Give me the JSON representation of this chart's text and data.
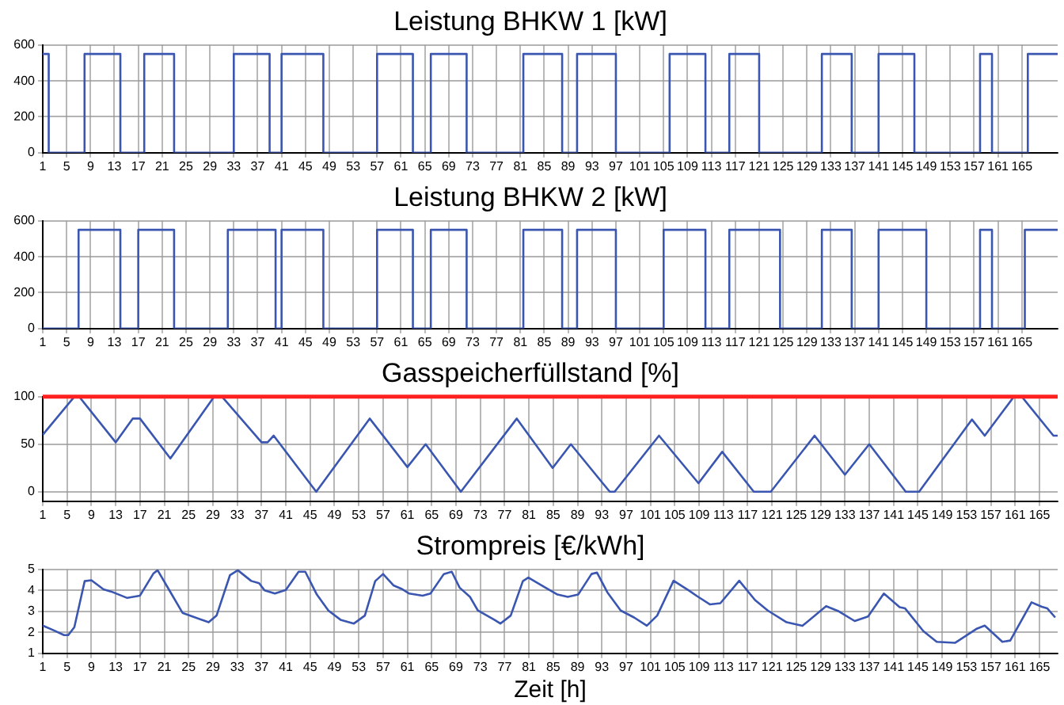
{
  "chart_data": [
    {
      "type": "step",
      "title": "Leistung BHKW 1 [kW]",
      "xlim": [
        1,
        171
      ],
      "xticks": [
        1,
        5,
        9,
        13,
        17,
        21,
        25,
        29,
        33,
        37,
        41,
        45,
        49,
        53,
        57,
        61,
        65,
        69,
        73,
        77,
        81,
        85,
        89,
        93,
        97,
        101,
        105,
        109,
        113,
        117,
        121,
        125,
        129,
        133,
        137,
        141,
        145,
        149,
        153,
        157,
        161,
        165
      ],
      "ylim": [
        0,
        600
      ],
      "yticks": [
        0,
        200,
        400,
        600
      ],
      "grid": true,
      "series": [
        {
          "color": "#3a56b0",
          "x": [
            1,
            2,
            8,
            14,
            18,
            23,
            33,
            39,
            41,
            48,
            57,
            63,
            66,
            72,
            81.5,
            88,
            90.5,
            97,
            106,
            112,
            116,
            121,
            131.5,
            136.5,
            141,
            147,
            158,
            160,
            166,
            171
          ],
          "values": [
            550,
            0,
            550,
            0,
            550,
            0,
            550,
            0,
            550,
            0,
            550,
            0,
            550,
            0,
            550,
            0,
            550,
            0,
            550,
            0,
            550,
            0,
            550,
            0,
            550,
            0,
            550,
            0,
            550,
            550
          ]
        }
      ]
    },
    {
      "type": "step",
      "title": "Leistung BHKW 2 [kW]",
      "xlim": [
        1,
        171
      ],
      "xticks": [
        1,
        5,
        9,
        13,
        17,
        21,
        25,
        29,
        33,
        37,
        41,
        45,
        49,
        53,
        57,
        61,
        65,
        69,
        73,
        77,
        81,
        85,
        89,
        93,
        97,
        101,
        105,
        109,
        113,
        117,
        121,
        125,
        129,
        133,
        137,
        141,
        145,
        149,
        153,
        157,
        161,
        165
      ],
      "ylim": [
        0,
        600
      ],
      "yticks": [
        0,
        200,
        400,
        600
      ],
      "grid": true,
      "series": [
        {
          "color": "#3a56b0",
          "x": [
            1,
            7,
            14,
            17,
            23,
            32,
            40,
            41,
            48,
            57,
            63,
            66,
            72,
            81.5,
            88,
            90.5,
            97,
            105,
            112,
            116,
            124.5,
            131.5,
            136.5,
            141,
            149,
            158,
            160,
            165.5,
            171
          ],
          "values": [
            0,
            550,
            0,
            550,
            0,
            550,
            0,
            550,
            0,
            550,
            0,
            550,
            0,
            550,
            0,
            550,
            0,
            550,
            0,
            550,
            0,
            550,
            0,
            550,
            0,
            550,
            0,
            550,
            550
          ]
        }
      ]
    },
    {
      "type": "line",
      "title": "Gasspeicherfüllstand [%]",
      "xlim": [
        1,
        168
      ],
      "xticks": [
        1,
        5,
        9,
        13,
        17,
        21,
        25,
        29,
        33,
        37,
        41,
        45,
        49,
        53,
        57,
        61,
        65,
        69,
        73,
        77,
        81,
        85,
        89,
        93,
        97,
        101,
        105,
        109,
        113,
        117,
        121,
        125,
        129,
        133,
        137,
        141,
        145,
        149,
        153,
        157,
        161,
        165
      ],
      "ylim": [
        -10,
        100
      ],
      "yticks": [
        0,
        50,
        100
      ],
      "grid": true,
      "ref_lines": [
        {
          "axis": "y",
          "value": 100,
          "color": "#ff2020"
        }
      ],
      "series": [
        {
          "color": "#3a56b0",
          "x": [
            1,
            6.2,
            7,
            13,
            15.8,
            17,
            22,
            29.2,
            30.5,
            37,
            38,
            39,
            46,
            54.8,
            61,
            64,
            69.8,
            79,
            84.9,
            87.9,
            94.3,
            95.1,
            102.4,
            108.9,
            112.8,
            118,
            120.8,
            128,
            133,
            137,
            143,
            145.2,
            153.9,
            156,
            160.8,
            162.1,
            167.3,
            168
          ],
          "values": [
            60,
            100,
            100,
            52,
            77,
            77,
            35,
            100,
            100,
            52,
            52,
            59,
            0,
            77,
            26,
            50,
            0,
            77,
            25,
            50,
            0,
            0,
            59,
            9,
            42,
            0,
            0,
            59,
            18,
            50,
            0,
            0,
            76,
            59,
            100,
            100,
            59,
            59
          ]
        }
      ]
    },
    {
      "type": "line",
      "title": "Strompreis [€/kWh]",
      "xlabel": "Zeit [h]",
      "xlim": [
        1,
        168
      ],
      "xticks": [
        1,
        5,
        9,
        13,
        17,
        21,
        25,
        29,
        33,
        37,
        41,
        45,
        49,
        53,
        57,
        61,
        65,
        69,
        73,
        77,
        81,
        85,
        89,
        93,
        97,
        101,
        105,
        109,
        113,
        117,
        121,
        125,
        129,
        133,
        137,
        141,
        145,
        149,
        153,
        157,
        161,
        165
      ],
      "ylim": [
        1,
        5
      ],
      "yticks": [
        1,
        2,
        3,
        4,
        5
      ],
      "grid": true,
      "series": [
        {
          "color": "#3a56b0",
          "x": [
            1,
            2.7,
            4.5,
            5.2,
            6.2,
            7.9,
            9,
            11,
            12.3,
            14.9,
            17,
            19.2,
            19.9,
            21.8,
            24,
            28.3,
            29.6,
            31.8,
            33.1,
            35.3,
            36.6,
            37.5,
            39.2,
            41,
            43.1,
            44.2,
            46.1,
            48,
            50,
            52.2,
            54,
            55.7,
            57,
            58.7,
            60,
            61.3,
            63.5,
            64.8,
            67,
            68.3,
            69.6,
            71.3,
            72.6,
            75.3,
            76.3,
            78,
            80,
            80.9,
            83.5,
            85.7,
            87.4,
            89.1,
            91.3,
            92.2,
            93.9,
            96.1,
            98.3,
            100.4,
            102.1,
            104.8,
            107.4,
            108.7,
            110.8,
            112.5,
            115.6,
            118.2,
            120.3,
            123.4,
            126,
            129.9,
            132,
            134.6,
            136.8,
            139.4,
            142,
            142.9,
            145.9,
            148.1,
            151.1,
            154.6,
            156,
            158.9,
            160.2,
            163.7,
            165.4,
            166.3,
            167.6
          ],
          "values": [
            2.32,
            2.11,
            1.87,
            1.87,
            2.25,
            4.44,
            4.48,
            4.05,
            3.94,
            3.64,
            3.75,
            4.8,
            4.96,
            4.02,
            2.93,
            2.48,
            2.8,
            4.72,
            4.96,
            4.45,
            4.34,
            4.0,
            3.85,
            4.02,
            4.89,
            4.89,
            3.8,
            3.04,
            2.6,
            2.42,
            2.8,
            4.44,
            4.78,
            4.24,
            4.08,
            3.85,
            3.75,
            3.85,
            4.78,
            4.89,
            4.13,
            3.69,
            3.04,
            2.6,
            2.42,
            2.8,
            4.44,
            4.61,
            4.17,
            3.8,
            3.69,
            3.8,
            4.78,
            4.85,
            3.91,
            3.04,
            2.71,
            2.32,
            2.8,
            4.46,
            3.98,
            3.72,
            3.33,
            3.39,
            4.46,
            3.54,
            3.04,
            2.48,
            2.31,
            3.25,
            3.0,
            2.54,
            2.76,
            3.85,
            3.2,
            3.14,
            2.06,
            1.55,
            1.5,
            2.16,
            2.32,
            1.55,
            1.61,
            3.43,
            3.22,
            3.14,
            2.71
          ]
        }
      ]
    }
  ]
}
